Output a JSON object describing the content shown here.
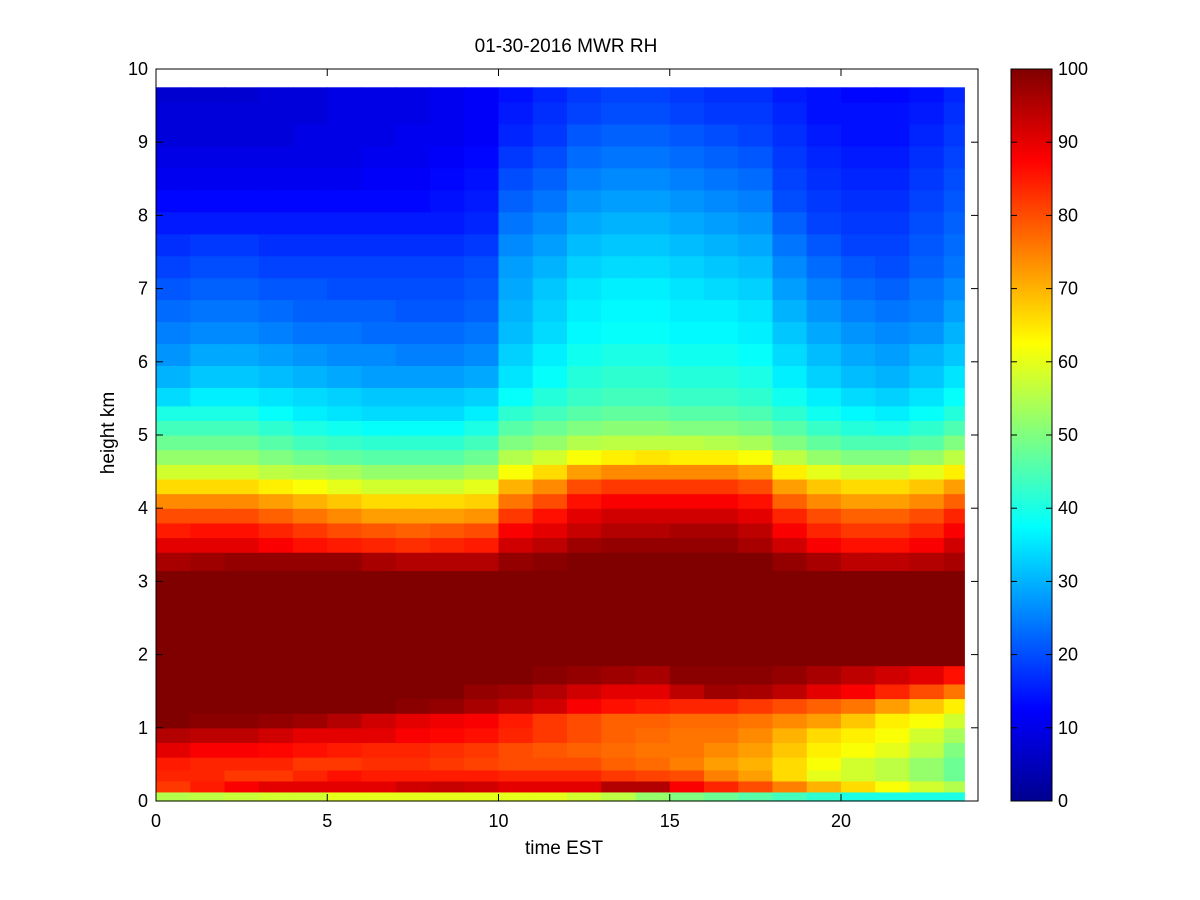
{
  "chart_data": {
    "type": "heatmap",
    "title": "01-30-2016 MWR RH",
    "xlabel": "time EST",
    "ylabel": "height km",
    "xlim": [
      0,
      24
    ],
    "ylim": [
      0,
      10
    ],
    "xticks": [
      0,
      5,
      10,
      15,
      20
    ],
    "yticks": [
      0,
      1,
      2,
      3,
      4,
      5,
      6,
      7,
      8,
      9,
      10
    ],
    "colorbar": {
      "colormap": "jet",
      "range": [
        0,
        100
      ],
      "ticks": [
        0,
        10,
        20,
        30,
        40,
        50,
        60,
        70,
        80,
        90,
        100
      ]
    },
    "x": [
      0.5,
      1.5,
      2.5,
      3.5,
      4.5,
      5.5,
      6.5,
      7.5,
      8.5,
      9.5,
      10.5,
      11.5,
      12.5,
      13.5,
      14.5,
      15.5,
      16.5,
      17.5,
      18.5,
      19.5,
      20.5,
      21.5,
      22.5,
      23.5
    ],
    "y": [
      0.05,
      0.2,
      0.35,
      0.5,
      0.7,
      0.9,
      1.1,
      1.3,
      1.5,
      1.7,
      2.0,
      2.5,
      3.0,
      3.3,
      3.5,
      3.7,
      3.9,
      4.1,
      4.3,
      4.5,
      4.7,
      4.9,
      5.1,
      5.3,
      5.5,
      5.8,
      6.1,
      6.4,
      6.7,
      7.0,
      7.3,
      7.6,
      7.9,
      8.2,
      8.5,
      8.8,
      9.1,
      9.4,
      9.7
    ],
    "values": [
      [
        55,
        56,
        57,
        58,
        58,
        60,
        60,
        60,
        60,
        60,
        60,
        60,
        58,
        56,
        52,
        50,
        48,
        46,
        44,
        42,
        40,
        40,
        40,
        40
      ],
      [
        82,
        85,
        88,
        90,
        90,
        90,
        90,
        92,
        93,
        92,
        90,
        90,
        90,
        95,
        95,
        88,
        84,
        80,
        75,
        70,
        66,
        62,
        58,
        55
      ],
      [
        84,
        84,
        82,
        82,
        84,
        86,
        85,
        85,
        85,
        85,
        84,
        84,
        84,
        82,
        81,
        80,
        75,
        72,
        66,
        60,
        58,
        56,
        52,
        48
      ],
      [
        85,
        84,
        84,
        84,
        82,
        82,
        83,
        83,
        82,
        81,
        80,
        80,
        80,
        78,
        77,
        75,
        72,
        70,
        66,
        62,
        58,
        56,
        52,
        48
      ],
      [
        90,
        88,
        88,
        87,
        86,
        85,
        84,
        84,
        83,
        82,
        80,
        79,
        78,
        77,
        76,
        76,
        74,
        72,
        68,
        64,
        62,
        60,
        56,
        50
      ],
      [
        95,
        94,
        94,
        92,
        90,
        90,
        90,
        88,
        87,
        86,
        84,
        82,
        80,
        78,
        77,
        76,
        76,
        74,
        70,
        66,
        64,
        62,
        58,
        54
      ],
      [
        100,
        99,
        99,
        98,
        97,
        95,
        92,
        90,
        89,
        88,
        85,
        82,
        80,
        78,
        78,
        77,
        77,
        76,
        74,
        72,
        68,
        64,
        62,
        58
      ],
      [
        100,
        100,
        100,
        100,
        100,
        100,
        100,
        99,
        98,
        96,
        94,
        92,
        88,
        86,
        85,
        84,
        84,
        82,
        80,
        78,
        76,
        72,
        68,
        64
      ],
      [
        100,
        100,
        100,
        100,
        100,
        100,
        100,
        100,
        100,
        98,
        97,
        95,
        92,
        90,
        90,
        94,
        97,
        96,
        94,
        90,
        88,
        84,
        80,
        76
      ],
      [
        100,
        100,
        100,
        100,
        100,
        100,
        100,
        100,
        100,
        100,
        100,
        99,
        98,
        97,
        96,
        99,
        99,
        99,
        98,
        96,
        94,
        92,
        90,
        86
      ],
      [
        100,
        100,
        100,
        100,
        100,
        100,
        100,
        100,
        100,
        100,
        100,
        100,
        100,
        100,
        100,
        100,
        100,
        100,
        100,
        100,
        100,
        100,
        100,
        100
      ],
      [
        100,
        100,
        100,
        100,
        100,
        100,
        100,
        100,
        100,
        100,
        100,
        100,
        100,
        100,
        100,
        100,
        100,
        100,
        100,
        100,
        100,
        100,
        100,
        100
      ],
      [
        100,
        100,
        100,
        100,
        100,
        100,
        100,
        100,
        100,
        100,
        100,
        100,
        100,
        100,
        100,
        100,
        100,
        100,
        100,
        100,
        100,
        100,
        100,
        100
      ],
      [
        96,
        97,
        98,
        98,
        98,
        98,
        96,
        95,
        95,
        95,
        98,
        99,
        100,
        100,
        100,
        100,
        100,
        100,
        98,
        96,
        94,
        94,
        95,
        96
      ],
      [
        90,
        90,
        90,
        88,
        86,
        85,
        84,
        83,
        84,
        85,
        92,
        94,
        97,
        98,
        98,
        98,
        98,
        96,
        92,
        88,
        86,
        86,
        88,
        92
      ],
      [
        85,
        86,
        86,
        84,
        82,
        80,
        79,
        78,
        79,
        80,
        88,
        90,
        93,
        95,
        95,
        96,
        96,
        94,
        88,
        84,
        82,
        82,
        84,
        88
      ],
      [
        80,
        80,
        80,
        78,
        76,
        74,
        72,
        72,
        72,
        73,
        82,
        86,
        90,
        92,
        92,
        92,
        92,
        90,
        84,
        80,
        78,
        78,
        80,
        84
      ],
      [
        74,
        74,
        74,
        72,
        70,
        68,
        66,
        66,
        66,
        67,
        76,
        80,
        86,
        88,
        88,
        88,
        88,
        86,
        78,
        74,
        72,
        72,
        74,
        78
      ],
      [
        66,
        66,
        66,
        64,
        62,
        60,
        58,
        58,
        58,
        60,
        70,
        74,
        80,
        82,
        82,
        82,
        82,
        80,
        72,
        68,
        66,
        66,
        68,
        72
      ],
      [
        58,
        58,
        58,
        56,
        55,
        54,
        52,
        52,
        52,
        54,
        62,
        66,
        72,
        74,
        74,
        74,
        74,
        72,
        64,
        60,
        58,
        58,
        60,
        64
      ],
      [
        52,
        52,
        52,
        50,
        48,
        47,
        46,
        46,
        46,
        48,
        55,
        58,
        62,
        64,
        65,
        64,
        64,
        62,
        56,
        52,
        50,
        50,
        52,
        56
      ],
      [
        48,
        48,
        48,
        46,
        44,
        43,
        42,
        42,
        42,
        44,
        50,
        52,
        55,
        56,
        56,
        56,
        55,
        54,
        50,
        47,
        45,
        45,
        46,
        50
      ],
      [
        44,
        44,
        44,
        42,
        40,
        39,
        38,
        38,
        38,
        40,
        46,
        48,
        50,
        51,
        51,
        50,
        50,
        49,
        46,
        43,
        41,
        40,
        42,
        45
      ],
      [
        40,
        40,
        40,
        38,
        36,
        35,
        34,
        34,
        34,
        36,
        42,
        44,
        46,
        47,
        47,
        46,
        46,
        45,
        42,
        39,
        37,
        36,
        38,
        41
      ],
      [
        34,
        36,
        36,
        35,
        34,
        33,
        32,
        32,
        32,
        33,
        38,
        41,
        43,
        44,
        44,
        43,
        43,
        42,
        39,
        36,
        34,
        33,
        35,
        38
      ],
      [
        30,
        32,
        32,
        31,
        30,
        29,
        28,
        28,
        28,
        29,
        35,
        38,
        41,
        42,
        42,
        41,
        41,
        40,
        36,
        33,
        31,
        30,
        32,
        35
      ],
      [
        27,
        29,
        29,
        28,
        27,
        26,
        26,
        25,
        25,
        26,
        33,
        36,
        39,
        40,
        40,
        39,
        39,
        38,
        34,
        31,
        29,
        28,
        30,
        32
      ],
      [
        25,
        26,
        26,
        25,
        24,
        24,
        23,
        23,
        23,
        24,
        31,
        34,
        37,
        38,
        38,
        37,
        37,
        36,
        32,
        29,
        27,
        26,
        27,
        30
      ],
      [
        23,
        24,
        24,
        23,
        22,
        22,
        22,
        21,
        21,
        22,
        30,
        33,
        36,
        37,
        37,
        36,
        36,
        35,
        30,
        27,
        25,
        24,
        25,
        28
      ],
      [
        21,
        22,
        22,
        21,
        21,
        20,
        20,
        20,
        20,
        21,
        29,
        32,
        35,
        36,
        36,
        35,
        34,
        33,
        28,
        25,
        23,
        22,
        24,
        26
      ],
      [
        19,
        20,
        20,
        19,
        19,
        19,
        19,
        19,
        19,
        20,
        28,
        30,
        33,
        34,
        34,
        33,
        32,
        31,
        26,
        23,
        21,
        20,
        22,
        24
      ],
      [
        17,
        18,
        18,
        17,
        17,
        17,
        17,
        17,
        17,
        18,
        26,
        28,
        31,
        32,
        32,
        31,
        30,
        29,
        24,
        21,
        19,
        19,
        21,
        23
      ],
      [
        15,
        15,
        15,
        15,
        15,
        15,
        15,
        15,
        15,
        16,
        24,
        26,
        29,
        30,
        30,
        29,
        28,
        27,
        22,
        19,
        18,
        18,
        20,
        22
      ],
      [
        13,
        13,
        13,
        13,
        13,
        13,
        13,
        13,
        14,
        15,
        22,
        24,
        27,
        28,
        28,
        27,
        26,
        25,
        20,
        18,
        17,
        17,
        19,
        21
      ],
      [
        11,
        11,
        11,
        11,
        11,
        11,
        12,
        12,
        13,
        14,
        20,
        22,
        25,
        26,
        26,
        25,
        24,
        23,
        19,
        17,
        16,
        16,
        18,
        20
      ],
      [
        10,
        10,
        10,
        10,
        10,
        10,
        11,
        11,
        12,
        13,
        18,
        20,
        23,
        24,
        24,
        23,
        22,
        21,
        18,
        16,
        15,
        15,
        17,
        19
      ],
      [
        9,
        9,
        9,
        9,
        10,
        10,
        10,
        11,
        11,
        12,
        16,
        18,
        21,
        22,
        22,
        21,
        20,
        19,
        17,
        15,
        14,
        14,
        16,
        18
      ],
      [
        9,
        9,
        9,
        9,
        9,
        10,
        10,
        10,
        11,
        12,
        15,
        17,
        19,
        20,
        20,
        19,
        18,
        18,
        16,
        14,
        14,
        14,
        15,
        17
      ],
      [
        8,
        8,
        8,
        9,
        9,
        10,
        10,
        10,
        11,
        12,
        14,
        16,
        18,
        19,
        19,
        18,
        17,
        17,
        15,
        14,
        13,
        13,
        14,
        16
      ]
    ]
  }
}
